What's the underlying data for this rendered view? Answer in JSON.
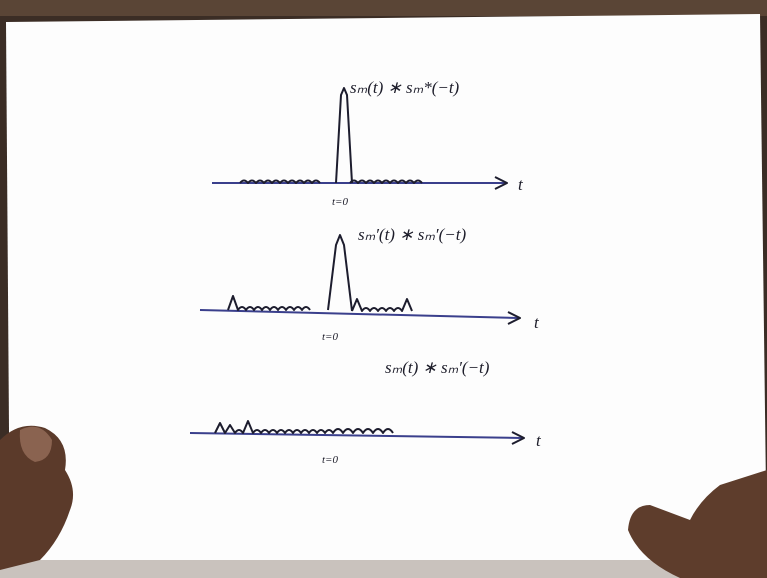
{
  "sketches": [
    {
      "label": "sₘ(t) ∗ sₘ*(−t)",
      "origin_label": "t=0",
      "axis_label": "t"
    },
    {
      "label": "sₘ′(t) ∗ sₘ′(−t)",
      "origin_label": "t=0",
      "axis_label": "t"
    },
    {
      "label": "sₘ(t) ∗ sₘ′(−t)",
      "origin_label": "t=0",
      "axis_label": "t"
    }
  ]
}
